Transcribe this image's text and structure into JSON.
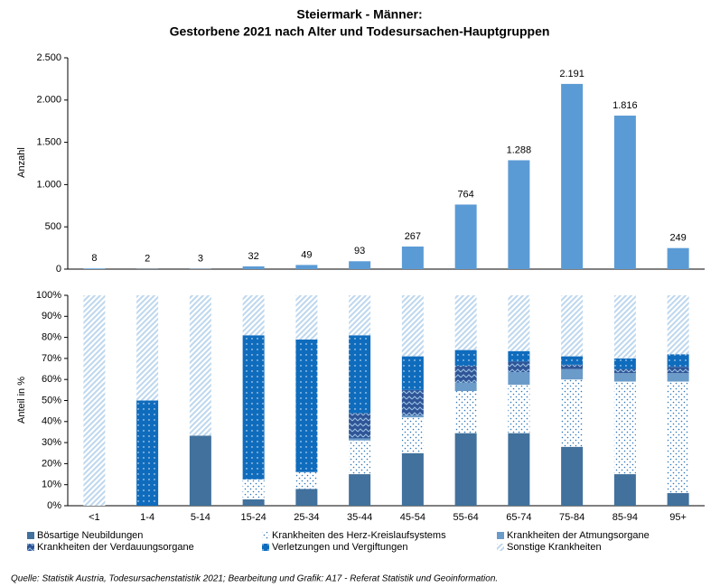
{
  "chart_data": [
    {
      "type": "bar",
      "title": [
        "Steiermark - Männer:",
        "Gestorbene 2021 nach Alter und Todesursachen-Hauptgruppen"
      ],
      "ylabel": "Anzahl",
      "categories": [
        "<1",
        "1-4",
        "5-14",
        "15-24",
        "25-34",
        "35-44",
        "45-54",
        "55-64",
        "65-74",
        "75-84",
        "85-94",
        "95+"
      ],
      "values": [
        8,
        2,
        3,
        32,
        49,
        93,
        267,
        764,
        1288,
        2191,
        1816,
        249
      ],
      "value_labels": [
        "8",
        "2",
        "3",
        "32",
        "49",
        "93",
        "267",
        "764",
        "1.288",
        "2.191",
        "1.816",
        "249"
      ],
      "color": "#5b9bd5",
      "ylim": [
        0,
        2500
      ],
      "yticks": [
        0,
        500,
        {
          "value": 1000,
          "label": "1.000"
        },
        {
          "value": 1500,
          "label": "1.500"
        },
        {
          "value": 2000,
          "label": "2.000"
        },
        {
          "value": 2500,
          "label": "2.500"
        }
      ]
    },
    {
      "type": "stacked_bar",
      "ylabel": "Anteil in %",
      "categories": [
        "<1",
        "1-4",
        "5-14",
        "15-24",
        "25-34",
        "35-44",
        "45-54",
        "55-64",
        "65-74",
        "75-84",
        "85-94",
        "95+"
      ],
      "series": [
        {
          "name": "Bösartige Neubildungen",
          "color": "#41719c",
          "pattern": "solid",
          "values": [
            0,
            0,
            33.3,
            3,
            8,
            15,
            25,
            34.5,
            34.5,
            28,
            15,
            6
          ]
        },
        {
          "name": "Krankheiten des Herz-Kreislaufsystems",
          "color": "#2e75b6",
          "pattern": "dots-light",
          "values": [
            0,
            0,
            0,
            9.5,
            8,
            16,
            17,
            20,
            23,
            32,
            44,
            53
          ]
        },
        {
          "name": "Krankheiten der Atmungsorgane",
          "color": "#6a9bc9",
          "pattern": "solid",
          "values": [
            0,
            0,
            0,
            0,
            0,
            1,
            1,
            4,
            6,
            5,
            4,
            4
          ]
        },
        {
          "name": "Krankheiten der Verdauungsorgane",
          "color": "#2f5597",
          "pattern": "zigzag",
          "values": [
            0,
            0,
            0,
            0,
            0,
            12,
            12,
            8,
            5,
            2,
            2,
            3
          ]
        },
        {
          "name": "Verletzungen und Vergiftungen",
          "color": "#0f6cbd",
          "pattern": "dots",
          "values": [
            0,
            50,
            0,
            68.5,
            63,
            37,
            16,
            7.5,
            5,
            4,
            5,
            6
          ]
        },
        {
          "name": "Sonstige Krankheiten",
          "color": "#bdd7ee",
          "pattern": "hatch",
          "values": [
            100,
            50,
            66.7,
            19,
            21,
            19,
            29,
            26,
            26.5,
            29,
            30,
            28
          ]
        }
      ],
      "ylim": [
        0,
        100
      ],
      "yticks": [
        {
          "value": 0,
          "label": "0%"
        },
        {
          "value": 10,
          "label": "10%"
        },
        {
          "value": 20,
          "label": "20%"
        },
        {
          "value": 30,
          "label": "30%"
        },
        {
          "value": 40,
          "label": "40%"
        },
        {
          "value": 50,
          "label": "50%"
        },
        {
          "value": 60,
          "label": "60%"
        },
        {
          "value": 70,
          "label": "70%"
        },
        {
          "value": 80,
          "label": "80%"
        },
        {
          "value": 90,
          "label": "90%"
        },
        {
          "value": 100,
          "label": "100%"
        }
      ]
    }
  ],
  "source": "Quelle: Statistik Austria, Todesursachenstatistik 2021; Bearbeitung und Grafik: A17 - Referat Statistik und Geoinformation."
}
